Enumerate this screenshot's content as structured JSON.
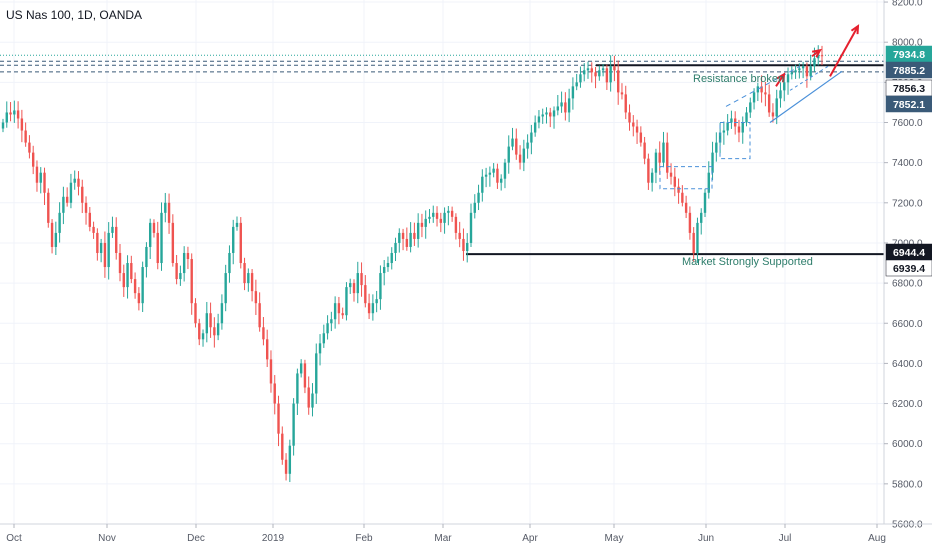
{
  "chart_data": {
    "type": "candlestick",
    "title": "US Nas 100, 1D, OANDA",
    "y_axis": {
      "position": "right",
      "range": [
        5600,
        8250
      ],
      "ticks": [
        "5600.0",
        "5800.0",
        "6000.0",
        "6200.0",
        "6400.0",
        "6600.0",
        "6800.0",
        "7000.0",
        "7200.0",
        "7400.0",
        "7600.0",
        "7800.0",
        "8000.0",
        "8200.0"
      ]
    },
    "x_axis": {
      "ticks": [
        "Oct",
        "Nov",
        "Dec",
        "2019",
        "Feb",
        "Mar",
        "Apr",
        "May",
        "Jun",
        "Jul",
        "Aug"
      ]
    },
    "colors": {
      "up": "#26a69a",
      "down": "#ef5350",
      "level": "#131722",
      "annotation": "#2e7d6b",
      "arrow": "#e5202e",
      "channel": "#4a90d9"
    },
    "price_tags": [
      {
        "label": "7934.8",
        "value": 7934.8,
        "bg": "#26a69a",
        "fg": "#ffffff"
      },
      {
        "label": "7885.2",
        "value": 7885.2,
        "bg": "#3a5a78",
        "fg": "#ffffff"
      },
      {
        "label": "7856.3",
        "value": 7856.3,
        "bg": "#ffffff",
        "fg": "#131722"
      },
      {
        "label": "7852.1",
        "value": 7852.1,
        "bg": "#3a5a78",
        "fg": "#ffffff"
      },
      {
        "label": "6944.4",
        "value": 6944.4,
        "bg": "#131722",
        "fg": "#ffffff"
      },
      {
        "label": "6939.4",
        "value": 6939.4,
        "bg": "#ffffff",
        "fg": "#131722"
      }
    ],
    "annotations": [
      {
        "text": "Resistance broken",
        "level": 7885
      },
      {
        "text": "Market Strongly Supported",
        "level": 6940
      }
    ],
    "closes": [
      7600,
      7650,
      7640,
      7660,
      7620,
      7560,
      7500,
      7450,
      7380,
      7300,
      7350,
      7250,
      7100,
      6980,
      7050,
      7150,
      7230,
      7200,
      7300,
      7320,
      7280,
      7200,
      7150,
      7080,
      7050,
      6950,
      7000,
      6880,
      7050,
      7080,
      6950,
      6850,
      6780,
      6900,
      6820,
      6750,
      6700,
      6880,
      6980,
      7100,
      7050,
      6900,
      7150,
      7200,
      7100,
      6900,
      6820,
      6850,
      6950,
      6920,
      6700,
      6600,
      6520,
      6550,
      6650,
      6580,
      6540,
      6600,
      6700,
      6850,
      6950,
      7080,
      7100,
      6900,
      6800,
      6850,
      6760,
      6700,
      6580,
      6520,
      6420,
      6300,
      6200,
      6050,
      5920,
      5850,
      5990,
      6200,
      6350,
      6400,
      6280,
      6180,
      6250,
      6450,
      6500,
      6550,
      6600,
      6620,
      6700,
      6650,
      6640,
      6780,
      6800,
      6750,
      6850,
      6790,
      6700,
      6650,
      6700,
      6720,
      6850,
      6880,
      6900,
      6950,
      7000,
      7050,
      7020,
      6980,
      7050,
      7020,
      7100,
      7080,
      7120,
      7130,
      7150,
      7120,
      7100,
      7150,
      7160,
      7130,
      7050,
      7020,
      6960,
      7000,
      7150,
      7200,
      7250,
      7330,
      7340,
      7350,
      7370,
      7300,
      7320,
      7400,
      7480,
      7520,
      7440,
      7400,
      7470,
      7500,
      7550,
      7600,
      7630,
      7640,
      7650,
      7630,
      7660,
      7680,
      7700,
      7650,
      7720,
      7780,
      7800,
      7840,
      7860,
      7870,
      7850,
      7830,
      7860,
      7870,
      7800,
      7880,
      7860,
      7750,
      7740,
      7650,
      7600,
      7580,
      7550,
      7500,
      7420,
      7300,
      7350,
      7450,
      7400,
      7500,
      7350,
      7330,
      7280,
      7250,
      7200,
      7150,
      7050,
      6950,
      7100,
      7150,
      7250,
      7350,
      7450,
      7500,
      7550,
      7560,
      7600,
      7620,
      7580,
      7550,
      7600,
      7650,
      7700,
      7750,
      7780,
      7750,
      7740,
      7650,
      7630,
      7720,
      7760,
      7800,
      7840,
      7850,
      7860,
      7870,
      7880,
      7830,
      7880,
      7920,
      7935,
      7930
    ]
  }
}
